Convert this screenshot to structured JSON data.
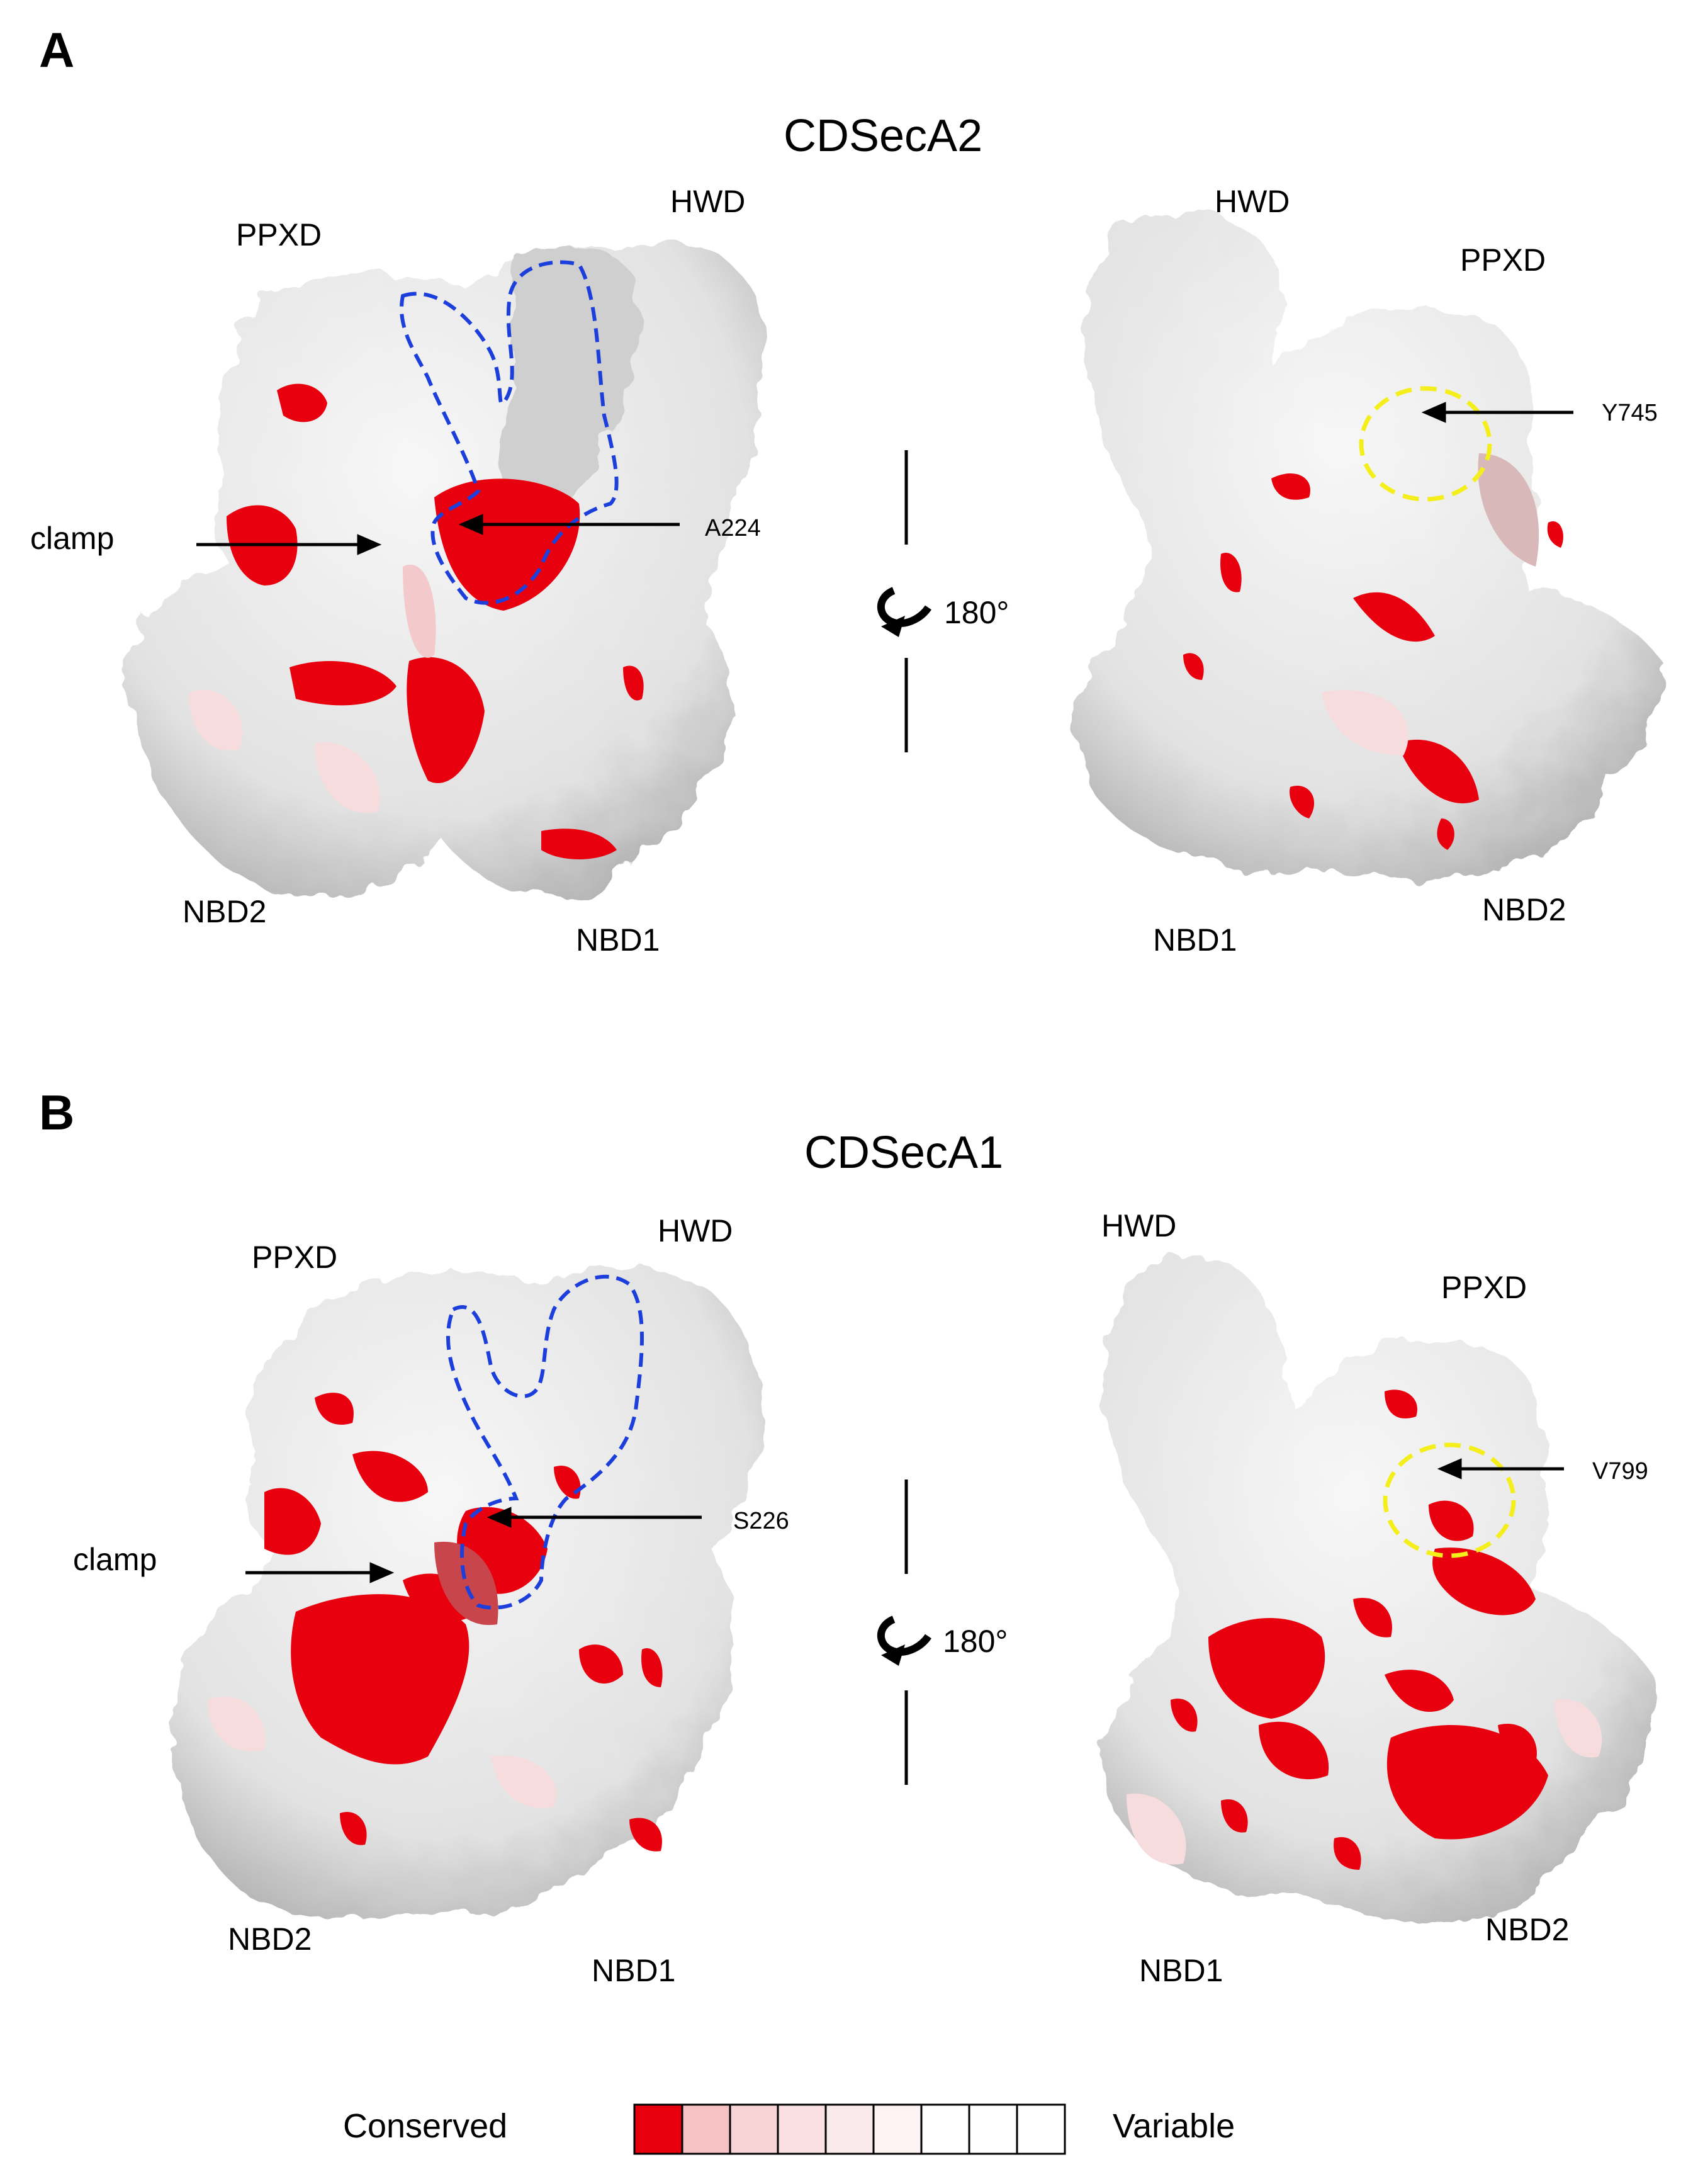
{
  "panels": [
    {
      "letter": "A",
      "title": "CDSecA2",
      "left_view": {
        "HWD": "HWD",
        "PPXD": "PPXD",
        "clamp": "clamp",
        "residue": "A224",
        "NBD2": "NBD2",
        "NBD1": "NBD1"
      },
      "rotation": "180°",
      "right_view": {
        "HWD": "HWD",
        "PPXD": "PPXD",
        "residue": "Y745",
        "NBD1": "NBD1",
        "NBD2": "NBD2"
      }
    },
    {
      "letter": "B",
      "title": "CDSecA1",
      "left_view": {
        "HWD": "HWD",
        "PPXD": "PPXD",
        "clamp": "clamp",
        "residue": "S226",
        "NBD2": "NBD2",
        "NBD1": "NBD1"
      },
      "rotation": "180°",
      "right_view": {
        "HWD": "HWD",
        "PPXD": "PPXD",
        "residue": "V799",
        "NBD1": "NBD1",
        "NBD2": "NBD2"
      }
    }
  ],
  "legend": {
    "left_label": "Conserved",
    "right_label": "Variable",
    "scale_colors": [
      "#e8000f",
      "#f6c2c4",
      "#f8d4d6",
      "#fae0e1",
      "#fbeaeb",
      "#fdf3f3",
      "#ffffff",
      "#ffffff",
      "#ffffff"
    ]
  },
  "colors": {
    "surface": "#e9e9e9",
    "surface_shadow": "#9a9a9a",
    "conserved": "#e8000f",
    "faint": "#f3c9cb",
    "outline_blue": "#1c3fdc",
    "circle_yellow": "#f4ee1a"
  }
}
